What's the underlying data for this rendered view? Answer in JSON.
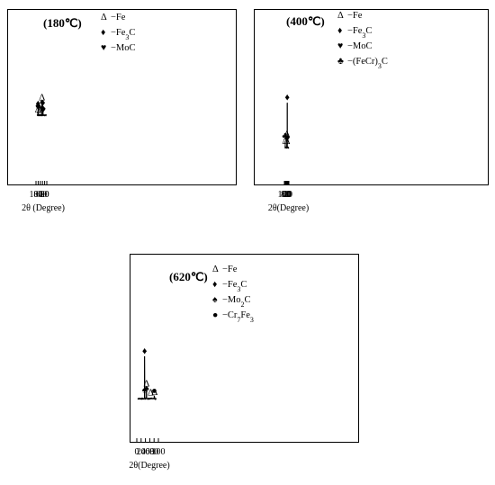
{
  "chart_data": [
    {
      "type": "line",
      "title": "(180℃)",
      "xlabel": "2θ (Degree)",
      "xlim": [
        0,
        100
      ],
      "xticks": [
        0,
        20,
        40,
        60,
        80,
        100
      ],
      "xtick_labels": [
        "0",
        "20",
        "40",
        "60",
        "80",
        "100"
      ],
      "legend": [
        {
          "symbol": "Δ",
          "label": "Fe",
          "dash": false
        },
        {
          "symbol": "♦",
          "label": "Fe3C",
          "dash": true
        },
        {
          "symbol": "♥",
          "label": "MoC",
          "dash": true
        }
      ],
      "peaks": [
        {
          "x": 35.6,
          "y": 0.58
        },
        {
          "x": 42.2,
          "y": 0.28
        },
        {
          "x": 44.7,
          "y": 0.98
        },
        {
          "x": 65.0,
          "y": 0.08
        },
        {
          "x": 80.3,
          "y": 0.52
        },
        {
          "x": 82.0,
          "y": 0.14
        }
      ],
      "annotations": [
        {
          "x": 35.6,
          "y": 0.66,
          "symbol": "♦"
        },
        {
          "x": 35.6,
          "y": 0.16,
          "symbol": "♥"
        },
        {
          "x": 42.2,
          "y": 0.34,
          "symbol": "♦"
        },
        {
          "x": 44.7,
          "y": 1.03,
          "symbol": "Δ"
        },
        {
          "x": 44.7,
          "y": 0.68,
          "symbol": "♦"
        },
        {
          "x": 65.0,
          "y": 0.13,
          "symbol": "Δ"
        },
        {
          "x": 80.3,
          "y": 0.6,
          "symbol": "♦"
        },
        {
          "x": 80.3,
          "y": 0.34,
          "symbol": "♥"
        },
        {
          "x": 82.0,
          "y": 0.19,
          "symbol": "Δ"
        }
      ]
    },
    {
      "type": "line",
      "title": "(400℃)",
      "xlabel": "2θ(Degree)",
      "xlim": [
        0,
        100
      ],
      "xticks": [
        0,
        20,
        40,
        60,
        80,
        100
      ],
      "xtick_labels": [
        "0",
        "20",
        "40",
        "60",
        "80",
        "100"
      ],
      "legend": [
        {
          "symbol": "Δ",
          "label": "Fe",
          "dash": false
        },
        {
          "symbol": "♦",
          "label": "Fe3C",
          "dash": true
        },
        {
          "symbol": "♥",
          "label": "MoC",
          "dash": true
        },
        {
          "symbol": "♣",
          "label": "(FeCr)3C",
          "dash": true
        }
      ],
      "peaks": [
        {
          "x": 36.2,
          "y": 1.0
        },
        {
          "x": 42.4,
          "y": 0.03
        },
        {
          "x": 44.8,
          "y": 0.18
        },
        {
          "x": 65.0,
          "y": 0.02
        },
        {
          "x": 80.7,
          "y": 0.14
        },
        {
          "x": 82.2,
          "y": 0.03
        }
      ],
      "annotations": [
        {
          "x": 36.2,
          "y": 1.05,
          "symbol": "♦"
        },
        {
          "x": 36.2,
          "y": 0.14,
          "symbol": "♥"
        },
        {
          "x": 42.4,
          "y": 0.08,
          "symbol": "Δ"
        },
        {
          "x": 44.8,
          "y": 0.23,
          "symbol": "Δ"
        },
        {
          "x": 80.7,
          "y": 0.19,
          "symbol": "♣"
        },
        {
          "x": 82.2,
          "y": 0.08,
          "symbol": "Δ"
        }
      ]
    },
    {
      "type": "line",
      "title": "(620℃)",
      "xlabel": "2θ(Degree)",
      "xlim": [
        0,
        100
      ],
      "xticks": [
        0,
        20,
        40,
        60,
        80,
        100
      ],
      "xtick_labels": [
        "0",
        "20",
        "40",
        "60",
        "80",
        "100"
      ],
      "legend": [
        {
          "symbol": "Δ",
          "label": "Fe",
          "dash": false
        },
        {
          "symbol": "♦",
          "label": "Fe3C",
          "dash": true
        },
        {
          "symbol": "♠",
          "label": "Mo2C",
          "dash": true
        },
        {
          "symbol": "●",
          "label": "Cr7Fe3",
          "dash": true
        }
      ],
      "peaks": [
        {
          "x": 36.0,
          "y": 1.0
        },
        {
          "x": 42.8,
          "y": 0.03
        },
        {
          "x": 44.9,
          "y": 0.24
        },
        {
          "x": 65.0,
          "y": 0.02
        },
        {
          "x": 80.9,
          "y": 0.07
        },
        {
          "x": 82.4,
          "y": 0.03
        }
      ],
      "annotations": [
        {
          "x": 36.0,
          "y": 1.05,
          "symbol": "♦"
        },
        {
          "x": 36.0,
          "y": 0.14,
          "symbol": "♠"
        },
        {
          "x": 44.9,
          "y": 0.29,
          "symbol": "Δ"
        },
        {
          "x": 44.9,
          "y": 0.17,
          "symbol": "♠"
        },
        {
          "x": 65.0,
          "y": 0.07,
          "symbol": "Δ"
        },
        {
          "x": 80.9,
          "y": 0.12,
          "symbol": "●"
        },
        {
          "x": 82.4,
          "y": 0.08,
          "symbol": "Δ"
        }
      ]
    }
  ]
}
